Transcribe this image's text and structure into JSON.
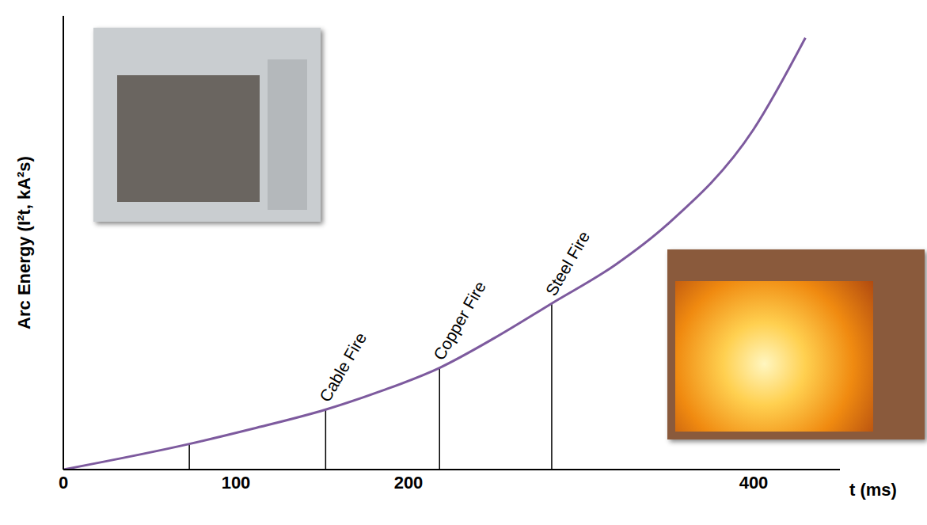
{
  "chart_data": {
    "type": "line",
    "y_label": "Arc Energy (I²t, kA²s)",
    "x_label": "t (ms)",
    "x": [
      0,
      73,
      110,
      152,
      185,
      218,
      250,
      283,
      320,
      350,
      400,
      430
    ],
    "values": [
      0,
      35,
      56,
      82,
      108,
      139,
      180,
      227,
      280,
      335,
      465,
      590
    ],
    "color": "#7d5a9e",
    "xlim": [
      0,
      450
    ],
    "xticks": [
      0,
      100,
      200,
      400
    ],
    "ylim": [
      0,
      620
    ],
    "tick_labels": "x",
    "annotations": [
      {
        "x": 73,
        "value": 35,
        "label": null
      },
      {
        "x": 152,
        "value": 82,
        "label": "Cable Fire"
      },
      {
        "x": 218,
        "value": 139,
        "label": "Copper Fire"
      },
      {
        "x": 283,
        "value": 227,
        "label": "Steel Fire"
      }
    ]
  }
}
